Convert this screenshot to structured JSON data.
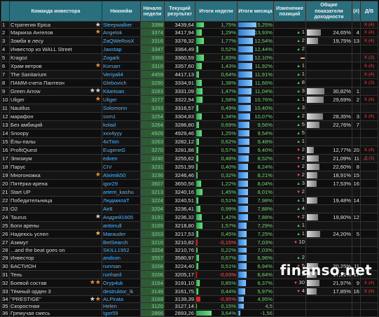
{
  "headers": {
    "team": "Команда инвестора",
    "nick": "Никнейм",
    "start": "Начало недели",
    "result": "Текущий результат",
    "week": "Итоги недели",
    "month": "Итоги месяца",
    "change": "Изменение позиций",
    "total": "Общие показатели доходности",
    "num": "(#)",
    "dv": "Д/В"
  },
  "watermark": "finanso.net",
  "rows": [
    {
      "i": "1",
      "team": "Стратегия Epica",
      "star": "white",
      "nick": "Sleepwalker",
      "start": "3398",
      "result": "3439,64",
      "week": "1,75%",
      "week_frac": 0.35,
      "month": "15,25%",
      "month_frac": 1.0,
      "dir": "",
      "change": "",
      "total": "",
      "total_frac": 0,
      "n": "",
      "dv": "X (4)"
    },
    {
      "i": "2",
      "team": "Маркиза Ангелов",
      "star": "orange",
      "nick": "Angelok",
      "start": "3374",
      "result": "3417,94",
      "week": "1,29%",
      "week_frac": 0.26,
      "month": "13,93%",
      "month_frac": 0.91,
      "dir": "up",
      "change": "1",
      "total": "24,65%",
      "total_frac": 0.55,
      "n": "4",
      "dv": "X (4)"
    },
    {
      "i": "3",
      "team": "Зомби в лесу",
      "star": "",
      "nick": "ZaQWeRosX",
      "start": "3316",
      "result": "3376,32",
      "week": "1,77%",
      "week_frac": 0.35,
      "month": "12,54%",
      "month_frac": 0.82,
      "dir": "up",
      "change": "2",
      "total": "19,75%",
      "total_frac": 0.44,
      "n": "13",
      "dv": "X (4)"
    },
    {
      "i": "4",
      "team": "Инвестор из WALL Street",
      "star": "",
      "nick": "Jaostap",
      "start": "3347",
      "result": "3364,49",
      "week": "0,52%",
      "week_frac": 0.1,
      "month": "12,44%",
      "month_frac": 0.82,
      "dir": "up",
      "change": "2",
      "total": "",
      "total_frac": 0,
      "n": "",
      "dv": ""
    },
    {
      "i": "5",
      "team": "Kragoz",
      "star": "",
      "nick": "Zogark",
      "start": "3360",
      "result": "3360,59",
      "week": "1,83%",
      "week_frac": 0.36,
      "month": "12,10%",
      "month_frac": 0.79,
      "dir": "flat",
      "change": "",
      "total": "",
      "total_frac": 0,
      "n": "",
      "dv": "X (3)"
    },
    {
      "i": "6",
      "team": "Храм ветров",
      "star": "orange",
      "nick": "Korsarr",
      "start": "3310",
      "result": "3357,60",
      "week": "1,43%",
      "week_frac": 0.28,
      "month": "11,92%",
      "month_frac": 0.78,
      "dir": "up",
      "change": "1",
      "total": "",
      "total_frac": 0,
      "n": "",
      "dv": "X (4)"
    },
    {
      "i": "7",
      "team": "The Sanitarium",
      "star": "",
      "nick": "Veriyali4",
      "start": "4459",
      "result": "4417,13",
      "week": "0,64%",
      "week_frac": 0.13,
      "month": "11,91%",
      "month_frac": 0.78,
      "dir": "up",
      "change": "1",
      "total": "",
      "total_frac": 0,
      "n": "",
      "dv": "X (4)"
    },
    {
      "i": "8",
      "team": "ПАММ-счета Пантеон",
      "star": "",
      "nick": "Glebovich",
      "start": "3290",
      "result": "3334,91",
      "week": "1,38%",
      "week_frac": 0.27,
      "month": "11,66%",
      "month_frac": 0.76,
      "dir": "up",
      "change": "8",
      "total": "",
      "total_frac": 0,
      "n": "",
      "dv": "X (3)"
    },
    {
      "i": "9",
      "team": "Green Arrow",
      "star": "white2",
      "nick": "Kitartoan",
      "start": "3283",
      "result": "3331,09",
      "week": "1,47%",
      "week_frac": 0.29,
      "month": "11,04%",
      "month_frac": 0.72,
      "dir": "up",
      "change": "3",
      "total": "30,82%",
      "total_frac": 0.69,
      "n": "1",
      "dv": ""
    },
    {
      "i": "10",
      "team": "Uliger",
      "star": "orange",
      "nick": "Uliger",
      "start": "3277",
      "result": "3322,94",
      "week": "1,58%",
      "week_frac": 0.31,
      "month": "10,76%",
      "month_frac": 0.7,
      "dir": "up",
      "change": "1",
      "total": "29,69%",
      "total_frac": 0.66,
      "n": "2",
      "dv": "X (4)"
    },
    {
      "i": "11",
      "team": "Nautilus",
      "star": "",
      "nick": "Solomonn",
      "start": "3293",
      "result": "3316,57",
      "week": "0,49%",
      "week_frac": 0.1,
      "month": "10,40%",
      "month_frac": 0.68,
      "dir": "up",
      "change": "3",
      "total": "",
      "total_frac": 0,
      "n": "",
      "dv": ""
    },
    {
      "i": "12",
      "team": "марафон",
      "star": "",
      "nick": "ssm1",
      "start": "3254",
      "result": "3304,83",
      "week": "1,34%",
      "week_frac": 0.26,
      "month": "10,07%",
      "month_frac": 0.66,
      "dir": "up",
      "change": "2",
      "total": "28,35%",
      "total_frac": 0.63,
      "n": "3",
      "dv": "X (4)"
    },
    {
      "i": "13",
      "team": "Без амбиций",
      "star": "",
      "nick": "kolad",
      "start": "3264",
      "result": "3286,80",
      "week": "0,69%",
      "week_frac": 0.14,
      "month": "9,56%",
      "month_frac": 0.63,
      "dir": "up",
      "change": "5",
      "total": "22,76%",
      "total_frac": 0.51,
      "n": "7",
      "dv": ""
    },
    {
      "i": "14",
      "team": "Snoopy",
      "star": "",
      "nick": "xxx4yyy",
      "start": "4926",
      "result": "4929,46",
      "week": "1,25%",
      "week_frac": 0.25,
      "month": "9,54%",
      "month_frac": 0.63,
      "dir": "up",
      "change": "5",
      "total": "",
      "total_frac": 0,
      "n": "",
      "dv": ""
    },
    {
      "i": "15",
      "team": "Ёлы-палы",
      "star": "",
      "nick": "4xTrim",
      "start": "3263",
      "result": "3282,12",
      "week": "0,62%",
      "week_frac": 0.12,
      "month": "9,48%",
      "month_frac": 0.62,
      "dir": "up",
      "change": "1",
      "total": "",
      "total_frac": 0,
      "n": "",
      "dv": ""
    },
    {
      "i": "16",
      "team": "ProfitQuest",
      "star": "",
      "nick": "EugeneG",
      "start": "3270",
      "result": "3281,88",
      "week": "0,57%",
      "week_frac": 0.11,
      "month": "9,40%",
      "month_frac": 0.62,
      "dir": "down",
      "change": "2",
      "total": "12,77%",
      "total_frac": 0.28,
      "n": "20",
      "dv": "X (4)"
    },
    {
      "i": "17",
      "team": "Элизиум",
      "star": "",
      "nick": "edven",
      "start": "3240",
      "result": "3255,62",
      "week": "0,48%",
      "week_frac": 0.1,
      "month": "8,52%",
      "month_frac": 0.56,
      "dir": "down",
      "change": "2",
      "total": "21,09%",
      "total_frac": 0.47,
      "n": "11",
      "dv": "Д (3)"
    },
    {
      "i": "18",
      "team": "Парус",
      "star": "",
      "nick": "CIV",
      "start": "3231",
      "result": "3251,99",
      "week": "0,40%",
      "week_frac": 0.08,
      "month": "8,24%",
      "month_frac": 0.54,
      "dir": "down",
      "change": "2",
      "total": "22,60%",
      "total_frac": 0.5,
      "n": "8",
      "dv": ""
    },
    {
      "i": "19",
      "team": "Многоножка",
      "star": "orange",
      "nick": "Alximik50",
      "start": "3236",
      "result": "3246,46",
      "week": "0,32%",
      "week_frac": 0.06,
      "month": "8,21%",
      "month_frac": 0.54,
      "dir": "down",
      "change": "2",
      "total": "18,91%",
      "total_frac": 0.42,
      "n": "15",
      "dv": ""
    },
    {
      "i": "20",
      "team": "Пятёрка-арена",
      "star": "",
      "nick": "igor29",
      "start": "3607",
      "result": "3650,56",
      "week": "1,22%",
      "week_frac": 0.24,
      "month": "8,04%",
      "month_frac": 0.53,
      "dir": "up",
      "change": "3",
      "total": "17,53%",
      "total_frac": 0.39,
      "n": "16",
      "dv": ""
    },
    {
      "i": "21",
      "team": "Start UP",
      "star": "",
      "nick": "artem_kashu",
      "start": "3213",
      "result": "3240,16",
      "week": "1,45%",
      "week_frac": 0.29,
      "month": "8,01%",
      "month_frac": 0.53,
      "dir": "down",
      "change": "2",
      "total": "",
      "total_frac": 0,
      "n": "",
      "dv": ""
    },
    {
      "i": "22",
      "team": "Победительница",
      "star": "",
      "nick": "ЛюдмилаТ",
      "start": "3224",
      "result": "3240,51",
      "week": "0,51%",
      "week_frac": 0.1,
      "month": "7,98%",
      "month_frac": 0.52,
      "dir": "up",
      "change": "1",
      "total": "19,48%",
      "total_frac": 0.43,
      "n": "14",
      "dv": ""
    },
    {
      "i": "23",
      "team": "O2",
      "star": "",
      "nick": "Air8",
      "start": "3204",
      "result": "3236,41",
      "week": "0,99%",
      "week_frac": 0.2,
      "month": "7,88%",
      "month_frac": 0.52,
      "dir": "up",
      "change": "4",
      "total": "",
      "total_frac": 0,
      "n": "",
      "dv": ""
    },
    {
      "i": "24",
      "team": "Taurus",
      "star": "white",
      "nick": "Андрей1605",
      "start": "3191",
      "result": "3236,32",
      "week": "1,42%",
      "week_frac": 0.28,
      "month": "7,88%",
      "month_frac": 0.52,
      "dir": "down",
      "change": "2",
      "total": "19,80%",
      "total_frac": 0.44,
      "n": "12",
      "dv": ""
    },
    {
      "i": "25",
      "team": "Боги арены",
      "star": "",
      "nick": "antonull",
      "start": "3169",
      "result": "3218,80",
      "week": "1,57%",
      "week_frac": 0.31,
      "month": "7,29%",
      "month_frac": 0.48,
      "dir": "up",
      "change": "1",
      "total": "",
      "total_frac": 0,
      "n": "",
      "dv": ""
    },
    {
      "i": "26",
      "team": "Надеюсь успел",
      "star": "gold",
      "nick": "Marauder",
      "start": "3203",
      "result": "3217,53",
      "week": "0,45%",
      "week_frac": 0.09,
      "month": "7,25%",
      "month_frac": 0.48,
      "dir": "up",
      "change": "1",
      "total": "24,20%",
      "total_frac": 0.54,
      "n": "5",
      "dv": ""
    },
    {
      "i": "27",
      "team": "Азимут",
      "star": "",
      "nick": "BetSearch",
      "start": "3216",
      "result": "3210,82",
      "week": "-0,15%",
      "week_frac": 0.05,
      "month": "7,03%",
      "month_frac": 0.46,
      "dir": "down",
      "change": "10",
      "total": "",
      "total_frac": 0,
      "n": "",
      "dv": ""
    },
    {
      "i": "28",
      "team": "...and the beat goes on",
      "star": "",
      "nick": "SKILL1952",
      "start": "3204",
      "result": "3210,76",
      "week": "0,22%",
      "week_frac": 0.05,
      "month": "7,03%",
      "month_frac": 0.46,
      "dir": "",
      "change": "",
      "total": "",
      "total_frac": 0,
      "n": "",
      "dv": ""
    },
    {
      "i": "29",
      "team": "Инвестор",
      "star": "",
      "nick": "andson",
      "start": "3557",
      "result": "3580,97",
      "week": "0,67%",
      "week_frac": 0.13,
      "month": "6,96%",
      "month_frac": 0.46,
      "dir": "up",
      "change": "2",
      "total": "",
      "total_frac": 0,
      "n": "",
      "dv": ""
    },
    {
      "i": "30",
      "team": "БАСТИОН",
      "star": "",
      "nick": "runman",
      "start": "3208",
      "result": "3224,40",
      "week": "0,51%",
      "week_frac": 0.1,
      "month": "6,94%",
      "month_frac": 0.46,
      "dir": "down",
      "change": "5",
      "total": "20,25%",
      "total_frac": 0.45,
      "n": "11",
      "dv": ""
    },
    {
      "i": "31",
      "team": "Тень",
      "star": "",
      "nick": "runhard",
      "start": "3206",
      "result": "3205,17",
      "week": "-0,03%",
      "week_frac": 0.03,
      "month": "6,84%",
      "month_frac": 0.45,
      "dir": "up",
      "change": "3",
      "total": "17,21%",
      "total_frac": 0.38,
      "n": "17",
      "dv": ""
    },
    {
      "i": "32",
      "team": "Боевой состав",
      "star": "orange2",
      "nick": "Oryp4uk",
      "start": "3164",
      "result": "3191,10",
      "week": "0,85%",
      "week_frac": 0.17,
      "month": "6,37%",
      "month_frac": 0.42,
      "dir": "down",
      "change": "30",
      "total": "21,97%",
      "total_frac": 0.49,
      "n": "9",
      "dv": "X (4)"
    },
    {
      "i": "33",
      "team": "Тёмный орден 3",
      "star": "",
      "nick": "destruktor_lk",
      "start": "3148",
      "result": "3161,75",
      "week": "0,44%",
      "week_frac": 0.09,
      "month": "5,97%",
      "month_frac": 0.39,
      "dir": "down",
      "change": "4",
      "total": "17,85%",
      "total_frac": 0.4,
      "n": "16",
      "dv": "X (4)"
    },
    {
      "i": "34",
      "team": "\"PRESTIGE\"",
      "star": "whiteorange",
      "nick": "ALPirata",
      "start": "3169",
      "result": "3139,39",
      "week": "-0,95%",
      "week_frac": 0.19,
      "month": "4,95%",
      "month_frac": 0.32,
      "dir": "",
      "change": "",
      "total": "",
      "total_frac": 0,
      "n": "",
      "dv": ""
    },
    {
      "i": "35",
      "team": "Скоростная",
      "star": "",
      "nick": "Helen",
      "start": "3120",
      "result": "3127,14",
      "week": "0,15%",
      "week_frac": 0.04,
      "month": "4,5",
      "month_frac": 0.3,
      "dir": "",
      "change": "",
      "total": "",
      "total_frac": 0,
      "n": "",
      "dv": ""
    },
    {
      "i": "36",
      "team": "Гремучая смесь",
      "star": "",
      "nick": "Igor59",
      "start": "2866",
      "result": "2893,26",
      "week": "3,64%",
      "week_frac": 0.72,
      "month": "-1,56",
      "month_frac": 0.1,
      "dir": "",
      "change": "",
      "total": "",
      "total_frac": 0,
      "n": "",
      "dv": ""
    }
  ]
}
